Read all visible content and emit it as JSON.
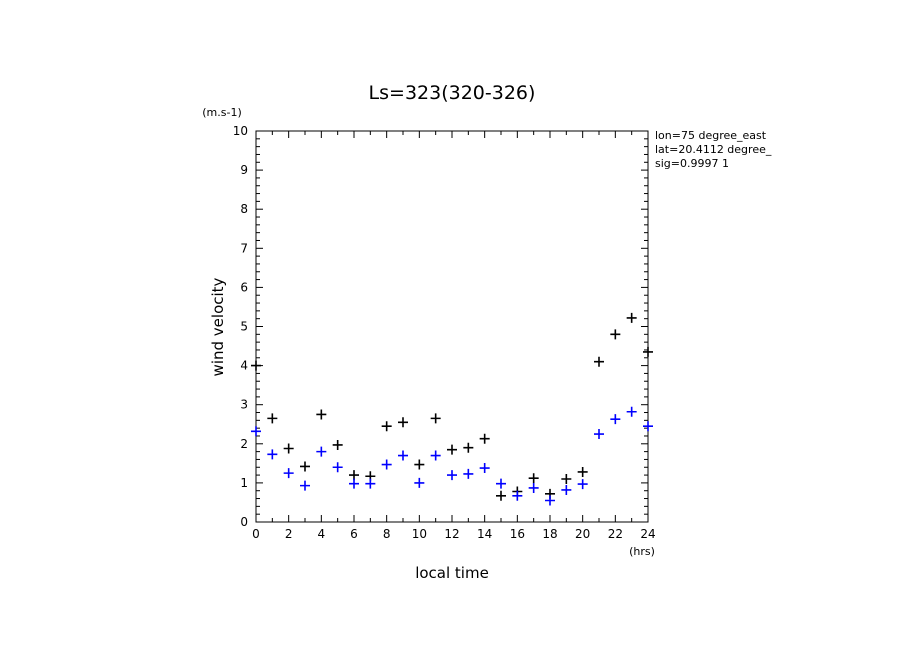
{
  "chart_data": {
    "type": "scatter",
    "title": "Ls=323(320-326)",
    "xlabel": "local time",
    "ylabel": "wind velocity",
    "xunit": "(hrs)",
    "yunit": "(m.s-1)",
    "xlim": [
      0,
      24
    ],
    "ylim": [
      0,
      10
    ],
    "xticks": [
      "0",
      "2",
      "4",
      "6",
      "8",
      "10",
      "12",
      "14",
      "16",
      "18",
      "20",
      "22",
      "24"
    ],
    "yticks": [
      "0",
      "1",
      "2",
      "3",
      "4",
      "5",
      "6",
      "7",
      "8",
      "9",
      "10"
    ],
    "annotations": [
      "lon=75 degree_east",
      "lat=20.4112 degree_",
      "sig=0.9997 1"
    ],
    "grid": false,
    "series": [
      {
        "color": "#000000",
        "x": [
          0,
          1,
          2,
          3,
          4,
          5,
          6,
          7,
          8,
          9,
          10,
          11,
          12,
          13,
          14,
          15,
          16,
          17,
          18,
          19,
          20,
          21,
          22,
          23,
          24
        ],
        "y": [
          4.0,
          2.65,
          1.88,
          1.42,
          2.75,
          1.97,
          1.2,
          1.17,
          2.45,
          2.55,
          1.47,
          2.65,
          1.85,
          1.9,
          2.13,
          0.67,
          0.78,
          1.12,
          0.72,
          1.1,
          1.28,
          4.1,
          4.8,
          5.22,
          4.35
        ]
      },
      {
        "color": "#0000ff",
        "x": [
          0,
          1,
          2,
          3,
          4,
          5,
          6,
          7,
          8,
          9,
          10,
          11,
          12,
          13,
          14,
          15,
          16,
          17,
          18,
          19,
          20,
          21,
          22,
          23,
          24
        ],
        "y": [
          2.32,
          1.73,
          1.25,
          0.93,
          1.8,
          1.4,
          0.98,
          0.98,
          1.47,
          1.7,
          1.0,
          1.7,
          1.2,
          1.23,
          1.38,
          0.98,
          0.67,
          0.87,
          0.55,
          0.82,
          0.97,
          2.25,
          2.63,
          2.82,
          2.45
        ]
      }
    ]
  }
}
